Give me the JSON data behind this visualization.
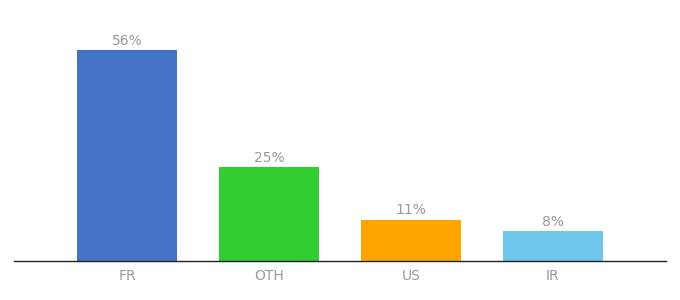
{
  "categories": [
    "FR",
    "OTH",
    "US",
    "IR"
  ],
  "values": [
    56,
    25,
    11,
    8
  ],
  "bar_colors": [
    "#4472C4",
    "#33CC33",
    "#FFA500",
    "#6EC6EA"
  ],
  "labels": [
    "56%",
    "25%",
    "11%",
    "8%"
  ],
  "background_color": "#ffffff",
  "ylim": [
    0,
    63
  ],
  "label_fontsize": 10,
  "tick_fontsize": 10,
  "bar_width": 0.7,
  "label_color": "#999999",
  "tick_color": "#999999"
}
